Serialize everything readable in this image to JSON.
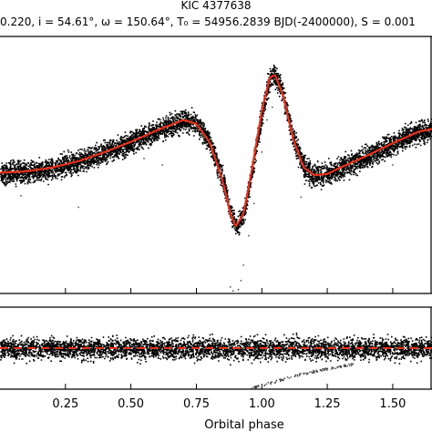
{
  "chart_data": [
    {
      "type": "scatter",
      "panel": "light-curve",
      "title": "KIC 4377638",
      "subtitle": "0.220, i = 54.61°, ω = 150.64°, T₀ = 54956.2839 BJD(-2400000), S = 0.001",
      "xlabel": "",
      "ylabel": "",
      "xlim": [
        0.0,
        1.65
      ],
      "ylim": [
        -1.0,
        1.0
      ],
      "grid": false,
      "model_color": "#e8311a",
      "point_color": "#000000",
      "model": {
        "name": "",
        "x": [
          0.0,
          0.1,
          0.2,
          0.3,
          0.4,
          0.5,
          0.6,
          0.7,
          0.75,
          0.8,
          0.85,
          0.88,
          0.9,
          0.93,
          0.96,
          1.0,
          1.03,
          1.05,
          1.08,
          1.12,
          1.16,
          1.2,
          1.25,
          1.3,
          1.4,
          1.5,
          1.6,
          1.65
        ],
        "y": [
          -0.06,
          -0.05,
          -0.02,
          0.03,
          0.1,
          0.18,
          0.27,
          0.35,
          0.32,
          0.18,
          -0.12,
          -0.38,
          -0.48,
          -0.38,
          -0.06,
          0.42,
          0.68,
          0.7,
          0.55,
          0.2,
          -0.02,
          -0.08,
          -0.07,
          -0.02,
          0.07,
          0.17,
          0.26,
          0.28
        ]
      },
      "scatter_width": 0.16,
      "outliers": [
        {
          "x": 0.88,
          "y": -0.95
        },
        {
          "x": 0.89,
          "y": -0.98
        },
        {
          "x": 0.9,
          "y": -1.0
        },
        {
          "x": 0.91,
          "y": -0.97
        },
        {
          "x": 0.92,
          "y": -0.9
        },
        {
          "x": 0.93,
          "y": -0.78
        },
        {
          "x": 0.95,
          "y": -0.55
        },
        {
          "x": 0.97,
          "y": -0.3
        },
        {
          "x": 1.0,
          "y": 0.1
        },
        {
          "x": 1.02,
          "y": 0.35
        },
        {
          "x": 1.04,
          "y": 0.45
        },
        {
          "x": 0.62,
          "y": 0.0
        },
        {
          "x": 0.3,
          "y": -0.33
        },
        {
          "x": 0.08,
          "y": -0.24
        },
        {
          "x": 1.15,
          "y": -0.25
        },
        {
          "x": 1.36,
          "y": -0.08
        },
        {
          "x": 0.55,
          "y": 0.05
        },
        {
          "x": 1.5,
          "y": 0.0
        }
      ]
    },
    {
      "type": "scatter",
      "panel": "residuals",
      "xlabel": "Orbital phase",
      "ylabel": "",
      "xlim": [
        0.0,
        1.65
      ],
      "ylim": [
        -1.0,
        1.0
      ],
      "xticks": [
        0.25,
        0.5,
        0.75,
        1.0,
        1.25,
        1.5
      ],
      "xtick_labels": [
        "0.25",
        "0.50",
        "0.75",
        "1.00",
        "1.25",
        "1.50"
      ],
      "zero_line": {
        "value": 0.0,
        "style": "dashed",
        "color": "#e8311a"
      },
      "band_halfwidth": 0.45,
      "trail": {
        "x": [
          0.95,
          1.05,
          1.15,
          1.25,
          1.35
        ],
        "y": [
          -1.0,
          -0.82,
          -0.64,
          -0.5,
          -0.4
        ]
      }
    }
  ]
}
